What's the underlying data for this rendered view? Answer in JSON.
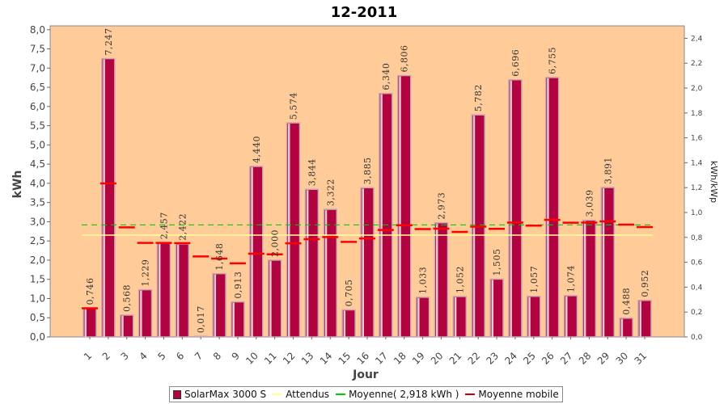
{
  "colors": {
    "plot_bg": "#ffcc99",
    "bar": "#b0033f",
    "bar_dark": "#7a0028",
    "expected_line": "#ffff99",
    "average_line": "#00cc00",
    "moving_avg": "#ff0000"
  },
  "chart_data": {
    "type": "bar",
    "title": "12-2011",
    "xlabel": "Jour",
    "ylabel": "kWh",
    "y2label": "kWh/kWp",
    "ylim": [
      0,
      8.1
    ],
    "y2lim": [
      0,
      2.5
    ],
    "yticks": [
      "0,0",
      "0,5",
      "1,0",
      "1,5",
      "2,0",
      "2,5",
      "3,0",
      "3,5",
      "4,0",
      "4,5",
      "5,0",
      "5,5",
      "6,0",
      "6,5",
      "7,0",
      "7,5",
      "8,0"
    ],
    "y2ticks": [
      "0,0",
      "0,2",
      "0,4",
      "0,6",
      "0,8",
      "1,0",
      "1,2",
      "1,4",
      "1,6",
      "1,8",
      "2,0",
      "2,2",
      "2,4"
    ],
    "categories": [
      "1",
      "2",
      "3",
      "4",
      "5",
      "6",
      "7",
      "8",
      "9",
      "10",
      "11",
      "12",
      "13",
      "14",
      "15",
      "16",
      "17",
      "18",
      "19",
      "20",
      "21",
      "22",
      "23",
      "24",
      "25",
      "26",
      "27",
      "28",
      "29",
      "30",
      "31"
    ],
    "series": [
      {
        "name": "SolarMax 3000 S",
        "values": [
          0.746,
          7.247,
          0.568,
          1.229,
          2.457,
          2.422,
          0.017,
          1.648,
          0.913,
          4.44,
          2.0,
          5.574,
          3.844,
          3.322,
          0.705,
          3.885,
          6.34,
          6.806,
          1.033,
          2.973,
          1.052,
          5.782,
          1.505,
          6.696,
          1.057,
          6.755,
          1.074,
          3.039,
          3.891,
          0.488,
          0.952
        ],
        "labels": [
          "0,746",
          "7,247",
          "0,568",
          "1,229",
          "2,457",
          "2,422",
          "0,017",
          "1,648",
          "0,913",
          "4,440",
          "2,000",
          "5,574",
          "3,844",
          "3,322",
          "0,705",
          "3,885",
          "6,340",
          "6,806",
          "1,033",
          "2,973",
          "1,052",
          "5,782",
          "1,505",
          "6,696",
          "1,057",
          "6,755",
          "1,074",
          "3,039",
          "3,891",
          "0,488",
          "0,952"
        ]
      },
      {
        "name": "Attendus",
        "values": [
          2.65,
          2.65,
          2.65,
          2.65,
          2.65,
          2.65,
          2.65,
          2.65,
          2.65,
          2.65,
          2.65,
          2.65,
          2.65,
          2.65,
          2.65,
          2.65,
          2.65,
          2.65,
          2.65,
          2.65,
          2.65,
          2.65,
          2.65,
          2.65,
          2.65,
          2.65,
          2.65,
          2.65,
          2.65,
          2.65,
          2.65
        ]
      },
      {
        "name": "Moyenne( 2,918 kWh )",
        "value": 2.918
      },
      {
        "name": "Moyenne mobile",
        "values": [
          0.746,
          3.997,
          2.854,
          2.448,
          2.449,
          2.444,
          2.097,
          2.041,
          1.916,
          2.168,
          2.152,
          2.437,
          2.545,
          2.601,
          2.475,
          2.563,
          2.785,
          2.909,
          2.81,
          2.818,
          2.734,
          2.873,
          2.814,
          2.976,
          2.899,
          3.047,
          2.974,
          2.976,
          3.008,
          2.924,
          2.86
        ]
      }
    ],
    "legend": "bottom-center",
    "grid": false
  }
}
